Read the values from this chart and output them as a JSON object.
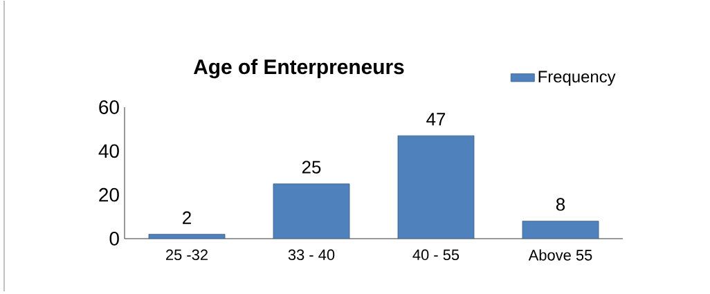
{
  "chart_data": {
    "type": "bar",
    "title": "Age of Enterpreneurs",
    "categories": [
      "25 -32",
      "33 - 40",
      "40 - 55",
      "Above 55"
    ],
    "series": [
      {
        "name": "Frequency",
        "color": "#4f81bd",
        "values": [
          2,
          25,
          47,
          8
        ]
      }
    ],
    "ylim": [
      0,
      60
    ],
    "yticks": [
      0,
      20,
      40,
      60
    ],
    "data_labels": true,
    "legend": "top right",
    "grid": false
  }
}
